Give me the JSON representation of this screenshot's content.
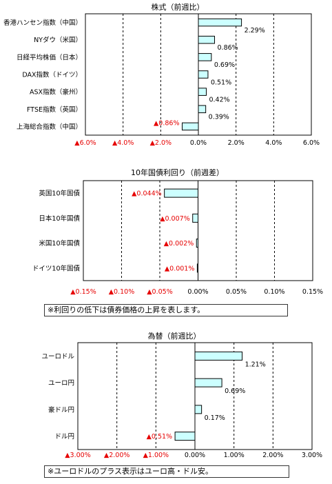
{
  "colors": {
    "bar_fill": "#ccffff",
    "bar_stroke": "#000000",
    "negative_text": "#e60000",
    "grid": "#000000"
  },
  "chart_data": [
    {
      "type": "bar",
      "orientation": "horizontal",
      "title": "株式（前週比）",
      "categories": [
        "香港ハンセン指数（中国）",
        "NYダウ（米国）",
        "日経平均株価（日本）",
        "DAX指数（ドイツ）",
        "ASX指数（豪州）",
        "FTSE指数（英国）",
        "上海総合指数（中国）"
      ],
      "values": [
        2.29,
        0.86,
        0.69,
        0.51,
        0.42,
        0.39,
        -0.86
      ],
      "value_labels": [
        "2.29%",
        "0.86%",
        "0.69%",
        "0.51%",
        "0.42%",
        "0.39%",
        "▲0.86%"
      ],
      "xlim": [
        -6,
        6
      ],
      "ticks": [
        -6,
        -4,
        -2,
        0,
        2,
        4,
        6
      ],
      "tick_labels": [
        "▲6.0%",
        "▲4.0%",
        "▲2.0%",
        "0.0%",
        "2.0%",
        "4.0%",
        "6.0%"
      ],
      "grid": "vertical dashed"
    },
    {
      "type": "bar",
      "orientation": "horizontal",
      "title": "10年国債利回り（前週差）",
      "categories": [
        "英国10年国債",
        "日本10年国債",
        "米国10年国債",
        "ドイツ10年国債"
      ],
      "values": [
        -0.044,
        -0.007,
        -0.002,
        -0.001
      ],
      "value_labels": [
        "▲0.044%",
        "▲0.007%",
        "▲0.002%",
        "▲0.001%"
      ],
      "xlim": [
        -0.15,
        0.15
      ],
      "ticks": [
        -0.15,
        -0.1,
        -0.05,
        0,
        0.05,
        0.1,
        0.15
      ],
      "tick_labels": [
        "▲0.15%",
        "▲0.10%",
        "▲0.05%",
        "0.00%",
        "0.05%",
        "0.10%",
        "0.15%"
      ],
      "grid": "vertical dashed",
      "note": "※利回りの低下は債券価格の上昇を表します。"
    },
    {
      "type": "bar",
      "orientation": "horizontal",
      "title": "為替（前週比）",
      "categories": [
        "ユーロドル",
        "ユーロ円",
        "豪ドル円",
        "ドル円"
      ],
      "values": [
        1.21,
        0.69,
        0.17,
        -0.51
      ],
      "value_labels": [
        "1.21%",
        "0.69%",
        "0.17%",
        "▲0.51%"
      ],
      "xlim": [
        -3,
        3
      ],
      "ticks": [
        -3,
        -2,
        -1,
        0,
        1,
        2,
        3
      ],
      "tick_labels": [
        "▲3.00%",
        "▲2.00%",
        "▲1.00%",
        "0.00%",
        "1.00%",
        "2.00%",
        "3.00%"
      ],
      "grid": "vertical dashed",
      "note": "※ユーロドルのプラス表示はユーロ高・ドル安。"
    }
  ]
}
